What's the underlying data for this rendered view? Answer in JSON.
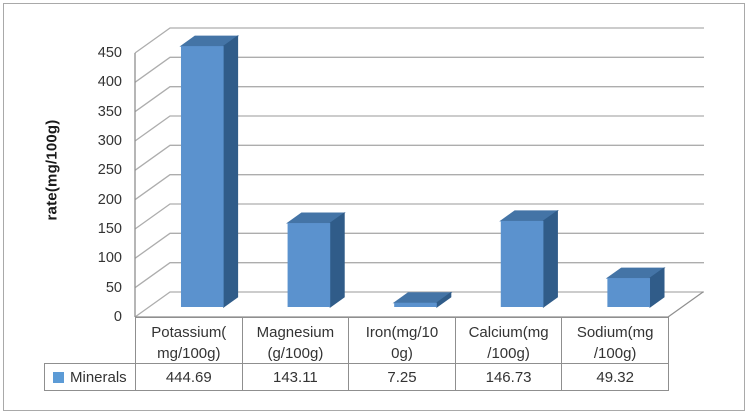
{
  "chart_data": {
    "type": "bar",
    "style": "3d-clustered-column",
    "title": "",
    "xlabel": "",
    "ylabel": "rate(mg/100g)",
    "categories": [
      "Potassium(mg/100g)",
      "Magnesium(g/100g)",
      "Iron(mg/100g)",
      "Calcium(mg/100g)",
      "Sodium(mg/100g)"
    ],
    "category_lines": [
      [
        "Potassium(",
        "mg/100g)"
      ],
      [
        "Magnesium",
        "(g/100g)"
      ],
      [
        "Iron(mg/10",
        "0g)"
      ],
      [
        "Calcium(mg",
        "/100g)"
      ],
      [
        "Sodium(mg",
        "/100g)"
      ]
    ],
    "series": [
      {
        "name": "Minerals",
        "values": [
          444.69,
          143.11,
          7.25,
          146.73,
          49.32
        ]
      }
    ],
    "value_labels": [
      "444.69",
      "143.11",
      "7.25",
      "146.73",
      "49.32"
    ],
    "ylim": [
      0,
      450
    ],
    "ytick_step": 50,
    "yticks": [
      0,
      50,
      100,
      150,
      200,
      250,
      300,
      350,
      400,
      450
    ],
    "grid": true,
    "data_table_shown": true,
    "legend": {
      "position": "bottom-left",
      "entries": [
        "Minerals"
      ]
    },
    "colors": {
      "bar_front": "#5b92ce",
      "bar_top": "#4474a6",
      "bar_side": "#305c89",
      "legend_swatch": "#5c9bd6",
      "grid": "#adadad",
      "axis": "#8f8f8f",
      "table_border": "#8f8f8f",
      "text": "#333333",
      "frame": "#a9a9a9",
      "background": "#ffffff"
    }
  }
}
